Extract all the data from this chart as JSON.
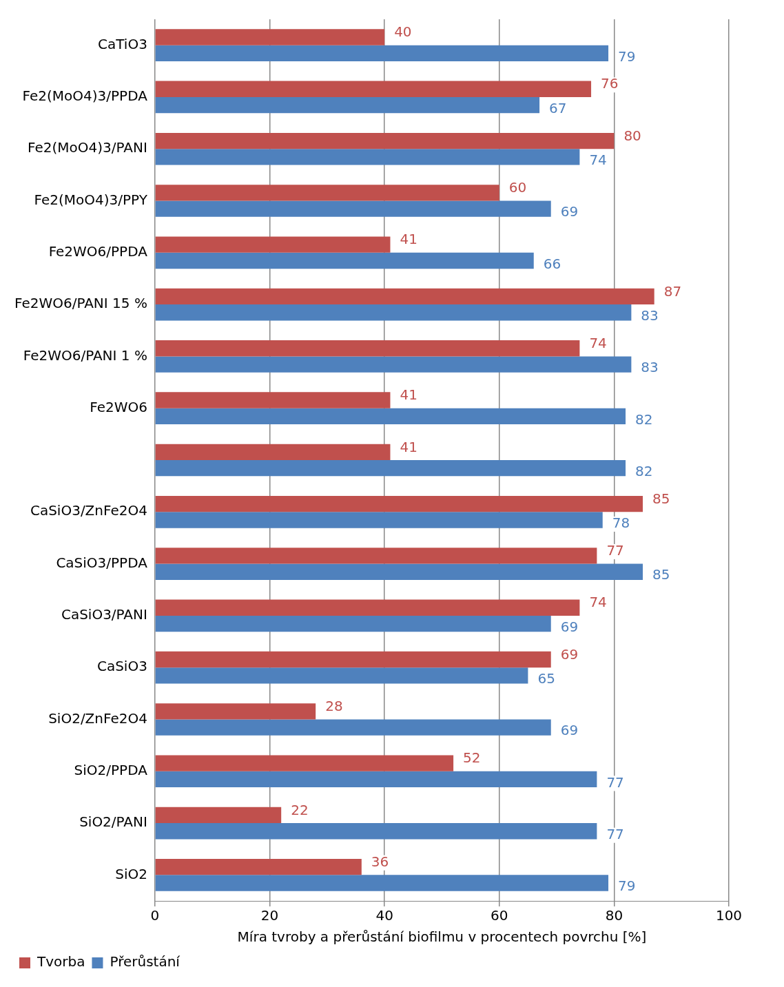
{
  "chart_data": {
    "type": "bar",
    "orientation": "horizontal",
    "xlabel": "Míra tvroby a přerůstání biofilmu v procentech povrchu [%]",
    "categories": [
      "CaTiO3",
      "Fe2(MoO4)3/PPDA",
      "Fe2(MoO4)3/PANI",
      "Fe2(MoO4)3/PPY",
      "Fe2WO6/PPDA",
      "Fe2WO6/PANI 15 %",
      "Fe2WO6/PANI 1 %",
      "Fe2WO6",
      null,
      "CaSiO3/ZnFe2O4",
      "CaSiO3/PPDA",
      "CaSiO3/PANI",
      "CaSiO3",
      "SiO2/ZnFe2O4",
      "SiO2/PPDA",
      "SiO2/PANI",
      "SiO2"
    ],
    "series": [
      {
        "name": "Tvorba",
        "color": "#c0504d",
        "values": [
          40,
          76,
          80,
          60,
          41,
          87,
          74,
          41,
          41,
          85,
          77,
          74,
          69,
          28,
          52,
          22,
          36
        ]
      },
      {
        "name": "Přerůstání",
        "color": "#4f81bd",
        "values": [
          79,
          67,
          74,
          69,
          66,
          83,
          83,
          82,
          82,
          78,
          85,
          69,
          65,
          69,
          77,
          77,
          79
        ]
      }
    ],
    "xlim": [
      0,
      100
    ],
    "xticks": [
      0,
      20,
      40,
      60,
      80,
      100
    ],
    "grid": "x",
    "legend": "bottom left",
    "data_labels": true
  }
}
